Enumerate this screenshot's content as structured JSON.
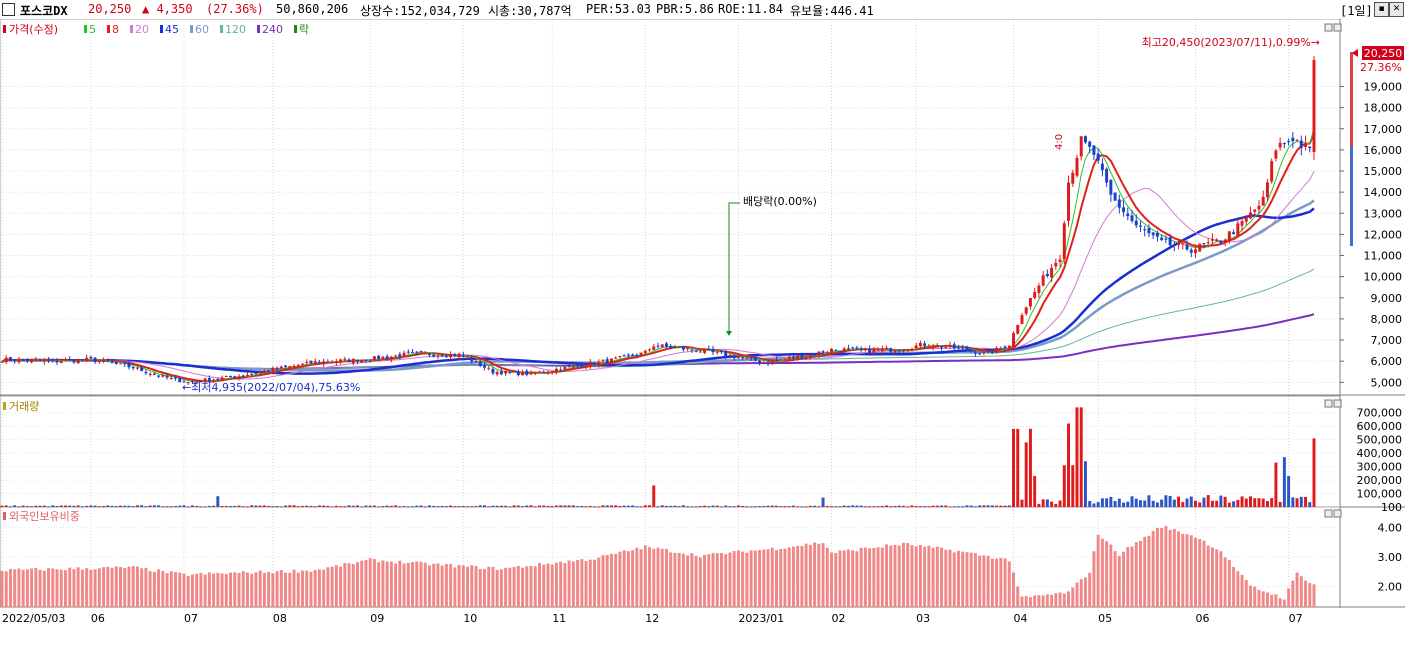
{
  "header": {
    "stock_name": "포스코DX",
    "price": "20,250",
    "change": "▲ 4,350",
    "change_pct": "(27.36%)",
    "volume": "50,860,206",
    "listed_shares": "상장수:152,034,729",
    "market_cap": "시총:30,787억",
    "per": "PER:53.03",
    "pbr": "PBR:5.86",
    "roe": "ROE:11.84",
    "reserve_ratio": "유보율:446.41",
    "period": "[1일]",
    "price_color": "#d0021b"
  },
  "legend": {
    "price_label": "가격(수정)",
    "ma": [
      {
        "label": "5",
        "color": "#2bbf2b"
      },
      {
        "label": "8",
        "color": "#e0201a"
      },
      {
        "label": "20",
        "color": "#d27ad2"
      },
      {
        "label": "45",
        "color": "#1a2fd0"
      },
      {
        "label": "60",
        "color": "#7a9ac8"
      },
      {
        "label": "120",
        "color": "#5fb8a0"
      },
      {
        "label": "240",
        "color": "#7a2fc0"
      }
    ],
    "ex_label": "락",
    "volume_label": "거래량",
    "foreign_label": "외국인보유비중"
  },
  "annotations": {
    "high": "최고20,450(2023/07/11),0.99%→",
    "low": "←최저4,935(2022/07/04),75.63%",
    "dividend": "배당락(0.00%)",
    "last_price": "20,250",
    "last_pct": "27.36%",
    "small_mark": "4:0"
  },
  "chart_data": [
    {
      "type": "candlestick",
      "title": "포스코DX",
      "y_ticks": [
        "5,000",
        "6,000",
        "7,000",
        "8,000",
        "9,000",
        "10,000",
        "11,000",
        "12,000",
        "13,000",
        "14,000",
        "15,000",
        "16,000",
        "17,000",
        "18,000",
        "19,000"
      ],
      "ylim": [
        4400,
        21200
      ],
      "x_tick_labels": [
        "2022/05/03",
        "06",
        "07",
        "08",
        "09",
        "10",
        "11",
        "12",
        "2023/01",
        "02",
        "03",
        "04",
        "05",
        "06",
        "07"
      ],
      "close_trajectory": [
        [
          "2022/05/03",
          6080
        ],
        [
          "2022/05/20",
          6000
        ],
        [
          "2022/06/01",
          6080
        ],
        [
          "2022/06/15",
          5700
        ],
        [
          "2022/06/23",
          5300
        ],
        [
          "2022/07/04",
          5000
        ],
        [
          "2022/07/20",
          5300
        ],
        [
          "2022/08/01",
          5600
        ],
        [
          "2022/08/15",
          5950
        ],
        [
          "2022/09/01",
          6100
        ],
        [
          "2022/09/15",
          6350
        ],
        [
          "2022/09/30",
          6300
        ],
        [
          "2022/10/05",
          6050
        ],
        [
          "2022/10/12",
          5500
        ],
        [
          "2022/10/25",
          5400
        ],
        [
          "2022/11/05",
          5700
        ],
        [
          "2022/11/20",
          6000
        ],
        [
          "2022/12/01",
          6400
        ],
        [
          "2022/12/05",
          6750
        ],
        [
          "2022/12/20",
          6500
        ],
        [
          "2022/12/28",
          6300
        ],
        [
          "2023/01/10",
          5950
        ],
        [
          "2023/01/25",
          6300
        ],
        [
          "2023/02/01",
          6550
        ],
        [
          "2023/02/15",
          6500
        ],
        [
          "2023/02/25",
          6600
        ],
        [
          "2023/03/05",
          6800
        ],
        [
          "2023/03/15",
          6600
        ],
        [
          "2023/03/25",
          6350
        ],
        [
          "2023/03/31",
          6800
        ],
        [
          "2023/04/05",
          8300
        ],
        [
          "2023/04/12",
          9900
        ],
        [
          "2023/04/18",
          11000
        ],
        [
          "2023/04/20",
          14500
        ],
        [
          "2023/04/25",
          16400
        ],
        [
          "2023/04/28",
          15800
        ],
        [
          "2023/05/04",
          13800
        ],
        [
          "2023/05/12",
          12400
        ],
        [
          "2023/05/22",
          11600
        ],
        [
          "2023/05/31",
          11300
        ],
        [
          "2023/06/09",
          11700
        ],
        [
          "2023/06/16",
          12500
        ],
        [
          "2023/06/23",
          13600
        ],
        [
          "2023/06/28",
          16100
        ],
        [
          "2023/07/04",
          16600
        ],
        [
          "2023/07/10",
          15900
        ],
        [
          "2023/07/11",
          20250
        ]
      ],
      "moving_averages": [
        "5",
        "8",
        "20",
        "45",
        "60",
        "120",
        "240"
      ]
    },
    {
      "type": "bar",
      "title": "거래량",
      "y_ticks": [
        "100",
        "100,000",
        "200,000",
        "300,000",
        "400,000",
        "500,000",
        "600,000",
        "700,000"
      ],
      "ylim": [
        0,
        750000
      ],
      "notable_bars": [
        [
          "2022/07/13",
          80000
        ],
        [
          "2022/12/05",
          160000
        ],
        [
          "2023/01/30",
          70000
        ],
        [
          "2023/04/03",
          580000
        ],
        [
          "2023/04/04",
          580000
        ],
        [
          "2023/04/06",
          480000
        ],
        [
          "2023/04/07",
          580000
        ],
        [
          "2023/04/10",
          230000
        ],
        [
          "2023/04/19",
          310000
        ],
        [
          "2023/04/20",
          620000
        ],
        [
          "2023/04/21",
          310000
        ],
        [
          "2023/04/24",
          740000
        ],
        [
          "2023/04/25",
          740000
        ],
        [
          "2023/04/26",
          340000
        ],
        [
          "2023/06/28",
          330000
        ],
        [
          "2023/06/30",
          370000
        ],
        [
          "2023/07/03",
          230000
        ],
        [
          "2023/07/11",
          510000
        ]
      ]
    },
    {
      "type": "bar",
      "title": "외국인보유비중",
      "y_ticks": [
        "2.00",
        "3.00",
        "4.00"
      ],
      "ylim": [
        1.3,
        4.4
      ],
      "trajectory": [
        [
          "2022/05/03",
          2.55
        ],
        [
          "2022/06/15",
          2.65
        ],
        [
          "2022/07/01",
          2.4
        ],
        [
          "2022/08/15",
          2.55
        ],
        [
          "2022/09/01",
          2.9
        ],
        [
          "2022/10/15",
          2.6
        ],
        [
          "2022/11/15",
          2.95
        ],
        [
          "2022/12/01",
          3.35
        ],
        [
          "2022/12/20",
          3.05
        ],
        [
          "2023/01/15",
          3.3
        ],
        [
          "2023/01/30",
          3.5
        ],
        [
          "2023/02/01",
          3.15
        ],
        [
          "2023/02/25",
          3.45
        ],
        [
          "2023/03/15",
          3.2
        ],
        [
          "2023/03/31",
          2.9
        ],
        [
          "2023/04/05",
          1.6
        ],
        [
          "2023/04/20",
          1.8
        ],
        [
          "2023/04/27",
          2.5
        ],
        [
          "2023/05/01",
          3.8
        ],
        [
          "2023/05/08",
          3.1
        ],
        [
          "2023/05/22",
          4.05
        ],
        [
          "2023/06/01",
          3.7
        ],
        [
          "2023/06/09",
          3.2
        ],
        [
          "2023/06/20",
          2.0
        ],
        [
          "2023/06/30",
          1.6
        ],
        [
          "2023/07/05",
          2.45
        ],
        [
          "2023/07/11",
          2.05
        ]
      ]
    }
  ]
}
